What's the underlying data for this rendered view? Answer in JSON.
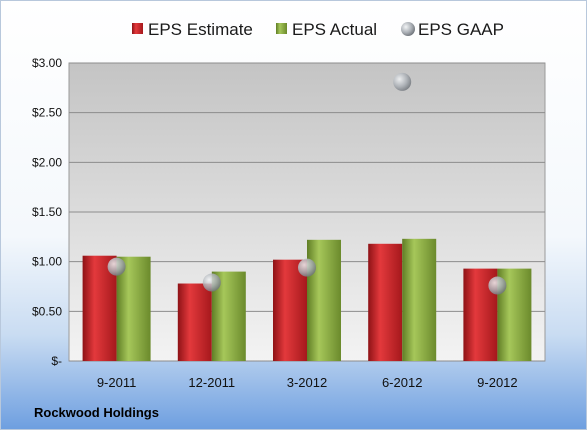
{
  "company": "Rockwood Holdings",
  "colors": {
    "estimate": "#cc1f24",
    "actual": "#8db03f",
    "gaap": "#b7bcc2"
  },
  "chart_data": {
    "type": "bar",
    "categories": [
      "9-2011",
      "12-2011",
      "3-2012",
      "6-2012",
      "9-2012"
    ],
    "series": [
      {
        "name": "EPS Estimate",
        "kind": "bar",
        "values": [
          1.06,
          0.78,
          1.02,
          1.18,
          0.93
        ]
      },
      {
        "name": "EPS Actual",
        "kind": "bar",
        "values": [
          1.05,
          0.9,
          1.22,
          1.23,
          0.93
        ]
      },
      {
        "name": "EPS GAAP",
        "kind": "scatter",
        "values": [
          0.95,
          0.79,
          0.94,
          2.81,
          0.76
        ]
      }
    ],
    "y_ticks": [
      0,
      0.5,
      1.0,
      1.5,
      2.0,
      2.5,
      3.0
    ],
    "y_tick_labels": [
      "$-",
      "$0.50",
      "$1.00",
      "$1.50",
      "$2.00",
      "$2.50",
      "$3.00"
    ],
    "ylim": [
      0,
      3.0
    ],
    "grid": true,
    "legend_position": "top"
  }
}
